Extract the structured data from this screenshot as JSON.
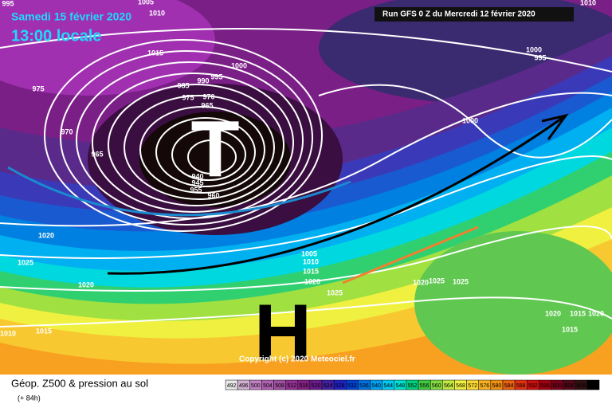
{
  "header": {
    "date": "Samedi 15 février 2020",
    "time": "13:00 locale",
    "run": "Run GFS 0 Z du Mercredi 12 février 2020",
    "copyright": "Copyright (c) 2020 Meteociel.fr"
  },
  "map": {
    "low_symbol": "T",
    "high_symbol": "H",
    "isobar_labels": [
      995,
      1010,
      1005,
      1010,
      1015,
      1000,
      995,
      1000,
      995,
      975,
      985,
      990,
      975,
      970,
      965,
      970,
      965,
      1000,
      940,
      945,
      955,
      960,
      1020,
      1025,
      1020,
      1015,
      1010,
      1005,
      1010,
      1015,
      1020,
      1025,
      1020,
      1025,
      1025,
      1020,
      1015,
      1020,
      1015
    ]
  },
  "footer": {
    "title": "Géop. Z500 & pression au sol",
    "lead": "(+ 84h)"
  },
  "legend": {
    "ticks": [
      492,
      496,
      500,
      504,
      508,
      512,
      516,
      520,
      524,
      528,
      532,
      536,
      540,
      544,
      548,
      552,
      556,
      560,
      564,
      568,
      572,
      576,
      580,
      584,
      588,
      592,
      596,
      600,
      604,
      608,
      612
    ],
    "colors": [
      "#e8e8e8",
      "#d0b0d0",
      "#c080c0",
      "#b060b0",
      "#a050a0",
      "#903090",
      "#802080",
      "#6a1a8a",
      "#4020a0",
      "#2020c0",
      "#0040d0",
      "#0070e0",
      "#00a0f0",
      "#00c8f0",
      "#00e0d0",
      "#00d080",
      "#40c840",
      "#80d840",
      "#c0e840",
      "#f0f040",
      "#f8d830",
      "#f8b020",
      "#f09010",
      "#e86010",
      "#e03010",
      "#c81010",
      "#a00010",
      "#780018",
      "#500818",
      "#301010",
      "#000000"
    ]
  }
}
